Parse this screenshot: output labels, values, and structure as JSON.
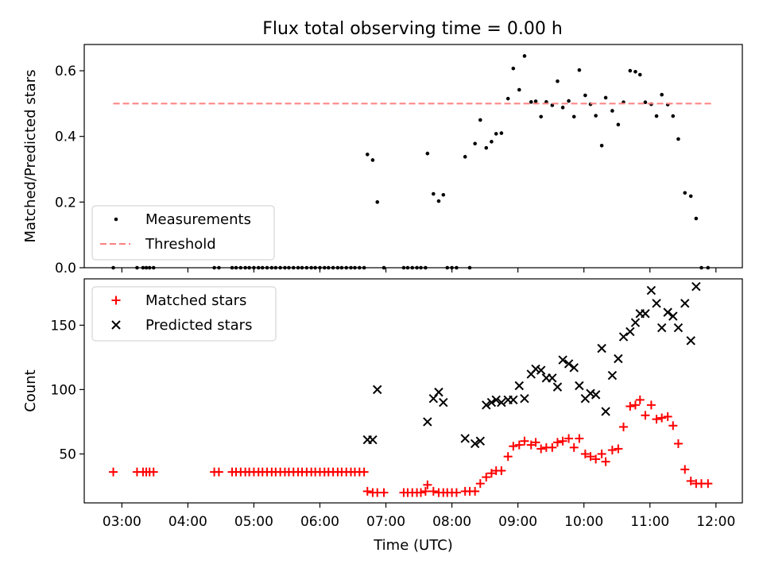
{
  "title": "Flux total observing time = 0.00 h",
  "chart_data": [
    {
      "type": "scatter",
      "panel": "top",
      "title": "Flux total observing time = 0.00 h",
      "xlabel": "",
      "ylabel": "Matched/Predicted stars",
      "x_unit": "hours UTC",
      "xlim": [
        2.43,
        12.4
      ],
      "ylim": [
        0,
        0.68
      ],
      "yticks": [
        0.0,
        0.2,
        0.4,
        0.6
      ],
      "ytick_labels": [
        "0.0",
        "0.2",
        "0.4",
        "0.6"
      ],
      "grid": false,
      "legend_position": "lower-left",
      "legend": [
        "Measurements",
        "Threshold"
      ],
      "series": [
        {
          "name": "Measurements",
          "marker": "dot",
          "color": "#000000",
          "points": [
            [
              2.87,
              0
            ],
            [
              3.23,
              0
            ],
            [
              3.32,
              0
            ],
            [
              3.37,
              0
            ],
            [
              3.42,
              0
            ],
            [
              3.48,
              0
            ],
            [
              4.4,
              0
            ],
            [
              4.47,
              0
            ],
            [
              4.67,
              0
            ],
            [
              4.73,
              0
            ],
            [
              4.8,
              0
            ],
            [
              4.87,
              0
            ],
            [
              4.93,
              0
            ],
            [
              5.0,
              0
            ],
            [
              5.07,
              0
            ],
            [
              5.13,
              0
            ],
            [
              5.2,
              0
            ],
            [
              5.27,
              0
            ],
            [
              5.33,
              0
            ],
            [
              5.4,
              0
            ],
            [
              5.47,
              0
            ],
            [
              5.53,
              0
            ],
            [
              5.6,
              0
            ],
            [
              5.67,
              0
            ],
            [
              5.73,
              0
            ],
            [
              5.8,
              0
            ],
            [
              5.87,
              0
            ],
            [
              5.93,
              0
            ],
            [
              6.0,
              0
            ],
            [
              6.07,
              0
            ],
            [
              6.13,
              0
            ],
            [
              6.2,
              0
            ],
            [
              6.27,
              0
            ],
            [
              6.33,
              0
            ],
            [
              6.4,
              0
            ],
            [
              6.47,
              0
            ],
            [
              6.53,
              0
            ],
            [
              6.6,
              0
            ],
            [
              6.67,
              0
            ],
            [
              6.72,
              0.345
            ],
            [
              6.8,
              0.328
            ],
            [
              6.87,
              0.2
            ],
            [
              6.97,
              0
            ],
            [
              7.27,
              0
            ],
            [
              7.33,
              0
            ],
            [
              7.4,
              0
            ],
            [
              7.47,
              0
            ],
            [
              7.53,
              0
            ],
            [
              7.6,
              0
            ],
            [
              7.63,
              0.348
            ],
            [
              7.72,
              0.225
            ],
            [
              7.8,
              0.203
            ],
            [
              7.87,
              0.222
            ],
            [
              7.93,
              0
            ],
            [
              8.0,
              0
            ],
            [
              8.07,
              0
            ],
            [
              8.2,
              0.338
            ],
            [
              8.27,
              0
            ],
            [
              8.35,
              0.378
            ],
            [
              8.43,
              0.45
            ],
            [
              8.52,
              0.365
            ],
            [
              8.6,
              0.384
            ],
            [
              8.67,
              0.408
            ],
            [
              8.75,
              0.41
            ],
            [
              8.85,
              0.515
            ],
            [
              8.93,
              0.607
            ],
            [
              9.02,
              0.542
            ],
            [
              9.1,
              0.645
            ],
            [
              9.2,
              0.505
            ],
            [
              9.27,
              0.507
            ],
            [
              9.35,
              0.46
            ],
            [
              9.43,
              0.505
            ],
            [
              9.52,
              0.495
            ],
            [
              9.6,
              0.568
            ],
            [
              9.68,
              0.488
            ],
            [
              9.77,
              0.508
            ],
            [
              9.85,
              0.46
            ],
            [
              9.93,
              0.602
            ],
            [
              10.02,
              0.525
            ],
            [
              10.1,
              0.498
            ],
            [
              10.18,
              0.463
            ],
            [
              10.27,
              0.372
            ],
            [
              10.33,
              0.518
            ],
            [
              10.43,
              0.478
            ],
            [
              10.52,
              0.436
            ],
            [
              10.6,
              0.504
            ],
            [
              10.7,
              0.6
            ],
            [
              10.78,
              0.597
            ],
            [
              10.85,
              0.588
            ],
            [
              10.93,
              0.504
            ],
            [
              11.02,
              0.498
            ],
            [
              11.1,
              0.462
            ],
            [
              11.18,
              0.527
            ],
            [
              11.27,
              0.497
            ],
            [
              11.35,
              0.462
            ],
            [
              11.43,
              0.392
            ],
            [
              11.53,
              0.228
            ],
            [
              11.62,
              0.218
            ],
            [
              11.7,
              0.15
            ],
            [
              11.78,
              0
            ],
            [
              11.88,
              0
            ]
          ]
        },
        {
          "name": "Threshold",
          "style": "dashed",
          "color": "#ff8080",
          "x": [
            2.87,
            11.95
          ],
          "y": [
            0.5,
            0.5
          ]
        }
      ]
    },
    {
      "type": "scatter",
      "panel": "bottom",
      "title": "",
      "xlabel": "Time (UTC)",
      "ylabel": "Count",
      "x_unit": "hours UTC",
      "xlim": [
        2.43,
        12.4
      ],
      "ylim": [
        12,
        186
      ],
      "xticks": [
        3,
        4,
        5,
        6,
        7,
        8,
        9,
        10,
        11,
        12
      ],
      "xtick_labels": [
        "03:00",
        "04:00",
        "05:00",
        "06:00",
        "07:00",
        "08:00",
        "09:00",
        "10:00",
        "11:00",
        "12:00"
      ],
      "yticks": [
        50,
        100,
        150
      ],
      "ytick_labels": [
        "50",
        "100",
        "150"
      ],
      "grid": false,
      "legend_position": "upper-left",
      "legend": [
        "Matched stars",
        "Predicted stars"
      ],
      "series": [
        {
          "name": "Matched stars",
          "marker": "plus",
          "color": "#ff0000",
          "points": [
            [
              2.87,
              36
            ],
            [
              3.23,
              36
            ],
            [
              3.32,
              36
            ],
            [
              3.37,
              36
            ],
            [
              3.42,
              36
            ],
            [
              3.48,
              36
            ],
            [
              4.4,
              36
            ],
            [
              4.47,
              36
            ],
            [
              4.67,
              36
            ],
            [
              4.73,
              36
            ],
            [
              4.8,
              36
            ],
            [
              4.87,
              36
            ],
            [
              4.93,
              36
            ],
            [
              5.0,
              36
            ],
            [
              5.07,
              36
            ],
            [
              5.13,
              36
            ],
            [
              5.2,
              36
            ],
            [
              5.27,
              36
            ],
            [
              5.33,
              36
            ],
            [
              5.4,
              36
            ],
            [
              5.47,
              36
            ],
            [
              5.53,
              36
            ],
            [
              5.6,
              36
            ],
            [
              5.67,
              36
            ],
            [
              5.73,
              36
            ],
            [
              5.8,
              36
            ],
            [
              5.87,
              36
            ],
            [
              5.93,
              36
            ],
            [
              6.0,
              36
            ],
            [
              6.07,
              36
            ],
            [
              6.13,
              36
            ],
            [
              6.2,
              36
            ],
            [
              6.27,
              36
            ],
            [
              6.33,
              36
            ],
            [
              6.4,
              36
            ],
            [
              6.47,
              36
            ],
            [
              6.53,
              36
            ],
            [
              6.6,
              36
            ],
            [
              6.67,
              36
            ],
            [
              6.72,
              21
            ],
            [
              6.8,
              20
            ],
            [
              6.87,
              20
            ],
            [
              6.97,
              20
            ],
            [
              7.27,
              20
            ],
            [
              7.33,
              20
            ],
            [
              7.4,
              20
            ],
            [
              7.47,
              20
            ],
            [
              7.53,
              20
            ],
            [
              7.6,
              21
            ],
            [
              7.63,
              26
            ],
            [
              7.72,
              21
            ],
            [
              7.8,
              20
            ],
            [
              7.87,
              20
            ],
            [
              7.93,
              20
            ],
            [
              8.0,
              20
            ],
            [
              8.07,
              20
            ],
            [
              8.2,
              21
            ],
            [
              8.27,
              21
            ],
            [
              8.35,
              21
            ],
            [
              8.43,
              27
            ],
            [
              8.52,
              32
            ],
            [
              8.6,
              35
            ],
            [
              8.67,
              37
            ],
            [
              8.75,
              37
            ],
            [
              8.85,
              48
            ],
            [
              8.93,
              56
            ],
            [
              9.02,
              57
            ],
            [
              9.1,
              60
            ],
            [
              9.2,
              57
            ],
            [
              9.27,
              59
            ],
            [
              9.35,
              54
            ],
            [
              9.43,
              55
            ],
            [
              9.52,
              55
            ],
            [
              9.6,
              59
            ],
            [
              9.68,
              60
            ],
            [
              9.77,
              62
            ],
            [
              9.85,
              55
            ],
            [
              9.93,
              62
            ],
            [
              10.02,
              50
            ],
            [
              10.1,
              48
            ],
            [
              10.18,
              46
            ],
            [
              10.27,
              50
            ],
            [
              10.33,
              44
            ],
            [
              10.43,
              53
            ],
            [
              10.52,
              54
            ],
            [
              10.6,
              71
            ],
            [
              10.7,
              87
            ],
            [
              10.78,
              88
            ],
            [
              10.85,
              92
            ],
            [
              10.93,
              80
            ],
            [
              11.02,
              88
            ],
            [
              11.1,
              77
            ],
            [
              11.18,
              78
            ],
            [
              11.27,
              79
            ],
            [
              11.35,
              72
            ],
            [
              11.43,
              58
            ],
            [
              11.53,
              38
            ],
            [
              11.62,
              29
            ],
            [
              11.7,
              27
            ],
            [
              11.78,
              27
            ],
            [
              11.88,
              27
            ]
          ]
        },
        {
          "name": "Predicted stars",
          "marker": "x",
          "color": "#000000",
          "points": [
            [
              6.72,
              61
            ],
            [
              6.8,
              61
            ],
            [
              6.87,
              100
            ],
            [
              7.63,
              75
            ],
            [
              7.72,
              93
            ],
            [
              7.8,
              98
            ],
            [
              7.87,
              90
            ],
            [
              8.2,
              62
            ],
            [
              8.35,
              58
            ],
            [
              8.43,
              60
            ],
            [
              8.52,
              88
            ],
            [
              8.6,
              90
            ],
            [
              8.67,
              92
            ],
            [
              8.75,
              90
            ],
            [
              8.85,
              92
            ],
            [
              8.93,
              92
            ],
            [
              9.02,
              103
            ],
            [
              9.1,
              93
            ],
            [
              9.2,
              112
            ],
            [
              9.27,
              116
            ],
            [
              9.35,
              115
            ],
            [
              9.43,
              109
            ],
            [
              9.52,
              109
            ],
            [
              9.6,
              102
            ],
            [
              9.68,
              123
            ],
            [
              9.77,
              120
            ],
            [
              9.85,
              117
            ],
            [
              9.93,
              103
            ],
            [
              10.02,
              93
            ],
            [
              10.1,
              97
            ],
            [
              10.18,
              96
            ],
            [
              10.27,
              132
            ],
            [
              10.33,
              83
            ],
            [
              10.43,
              111
            ],
            [
              10.52,
              124
            ],
            [
              10.6,
              141
            ],
            [
              10.7,
              145
            ],
            [
              10.78,
              152
            ],
            [
              10.85,
              159
            ],
            [
              10.93,
              159
            ],
            [
              11.02,
              177
            ],
            [
              11.1,
              167
            ],
            [
              11.18,
              148
            ],
            [
              11.27,
              160
            ],
            [
              11.35,
              157
            ],
            [
              11.43,
              148
            ],
            [
              11.53,
              167
            ],
            [
              11.62,
              138
            ],
            [
              11.7,
              180
            ]
          ]
        }
      ]
    }
  ]
}
